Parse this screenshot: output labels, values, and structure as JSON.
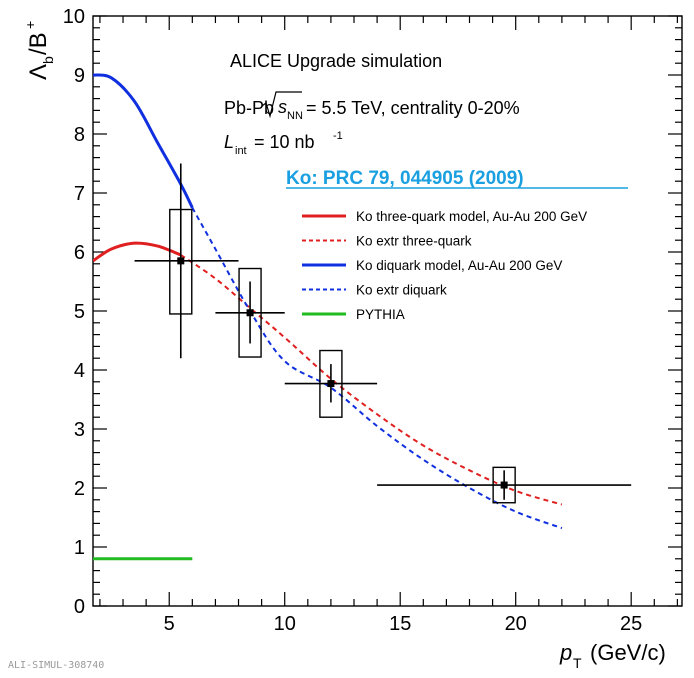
{
  "page": {
    "footer_id": "ALI-SIMUL-308740"
  },
  "chart_data": {
    "type": "scatter",
    "title": "ALICE Upgrade simulation",
    "collision_system": "Pb-Pb",
    "sqrt_s_value": "= 5.5 TeV, centrality 0-20%",
    "luminosity_value": "= 10 nb",
    "luminosity_exp": "-1",
    "reference": "Ko: PRC 79, 044905 (2009)",
    "xlabel": "(GeV/c)",
    "ylabel": "Λb/B+",
    "xlim": [
      1.7,
      27.2
    ],
    "ylim": [
      0,
      10
    ],
    "x_ticks": [
      5,
      10,
      15,
      20,
      25
    ],
    "y_ticks": [
      0,
      1,
      2,
      3,
      4,
      5,
      6,
      7,
      8,
      9,
      10
    ],
    "grid": false,
    "legend_position": "right",
    "series": [
      {
        "name": "Ko three-quark model, Au-Au 200 GeV",
        "style": "solid",
        "color": "#e02020",
        "x": [
          1.7,
          2.5,
          3.5,
          4.5,
          5.5
        ],
        "y": [
          5.85,
          6.05,
          6.15,
          6.1,
          5.95
        ]
      },
      {
        "name": "Ko extr three-quark",
        "style": "dashed",
        "color": "#e02020",
        "x": [
          5.5,
          7,
          8.5,
          10,
          12,
          14,
          16,
          18,
          20,
          22
        ],
        "y": [
          5.95,
          5.55,
          5.05,
          4.55,
          3.85,
          3.25,
          2.72,
          2.3,
          1.95,
          1.72
        ]
      },
      {
        "name": "Ko diquark model, Au-Au 200 GeV",
        "style": "solid",
        "color": "#1030e0",
        "x": [
          1.7,
          2.5,
          3.5,
          4.5,
          5.5,
          6
        ],
        "y": [
          9.0,
          8.95,
          8.55,
          7.85,
          7.15,
          6.75
        ]
      },
      {
        "name": "Ko extr diquark",
        "style": "dashed",
        "color": "#1030e0",
        "x": [
          6,
          7,
          8.5,
          10,
          12,
          14,
          16,
          18,
          20,
          22
        ],
        "y": [
          6.75,
          6.05,
          5.0,
          4.15,
          3.7,
          3.05,
          2.48,
          2.0,
          1.6,
          1.32
        ]
      },
      {
        "name": "PYTHIA",
        "style": "solid",
        "color": "#22bb22",
        "x": [
          1.7,
          6
        ],
        "y": [
          0.8,
          0.8
        ]
      }
    ],
    "data_points": [
      {
        "x": 5.5,
        "y": 5.85,
        "x_low": 3.5,
        "x_high": 8,
        "stat_low": 4.2,
        "stat_high": 7.5,
        "sys_low": 4.95,
        "sys_high": 6.72
      },
      {
        "x": 8.5,
        "y": 4.97,
        "x_low": 7,
        "x_high": 10,
        "stat_low": 4.45,
        "stat_high": 5.5,
        "sys_low": 4.22,
        "sys_high": 5.72
      },
      {
        "x": 12,
        "y": 3.77,
        "x_low": 10,
        "x_high": 14,
        "stat_low": 3.45,
        "stat_high": 4.1,
        "sys_low": 3.2,
        "sys_high": 4.33
      },
      {
        "x": 19.5,
        "y": 2.05,
        "x_low": 14,
        "x_high": 25,
        "stat_low": 1.8,
        "stat_high": 2.3,
        "sys_low": 1.75,
        "sys_high": 2.35
      }
    ]
  }
}
